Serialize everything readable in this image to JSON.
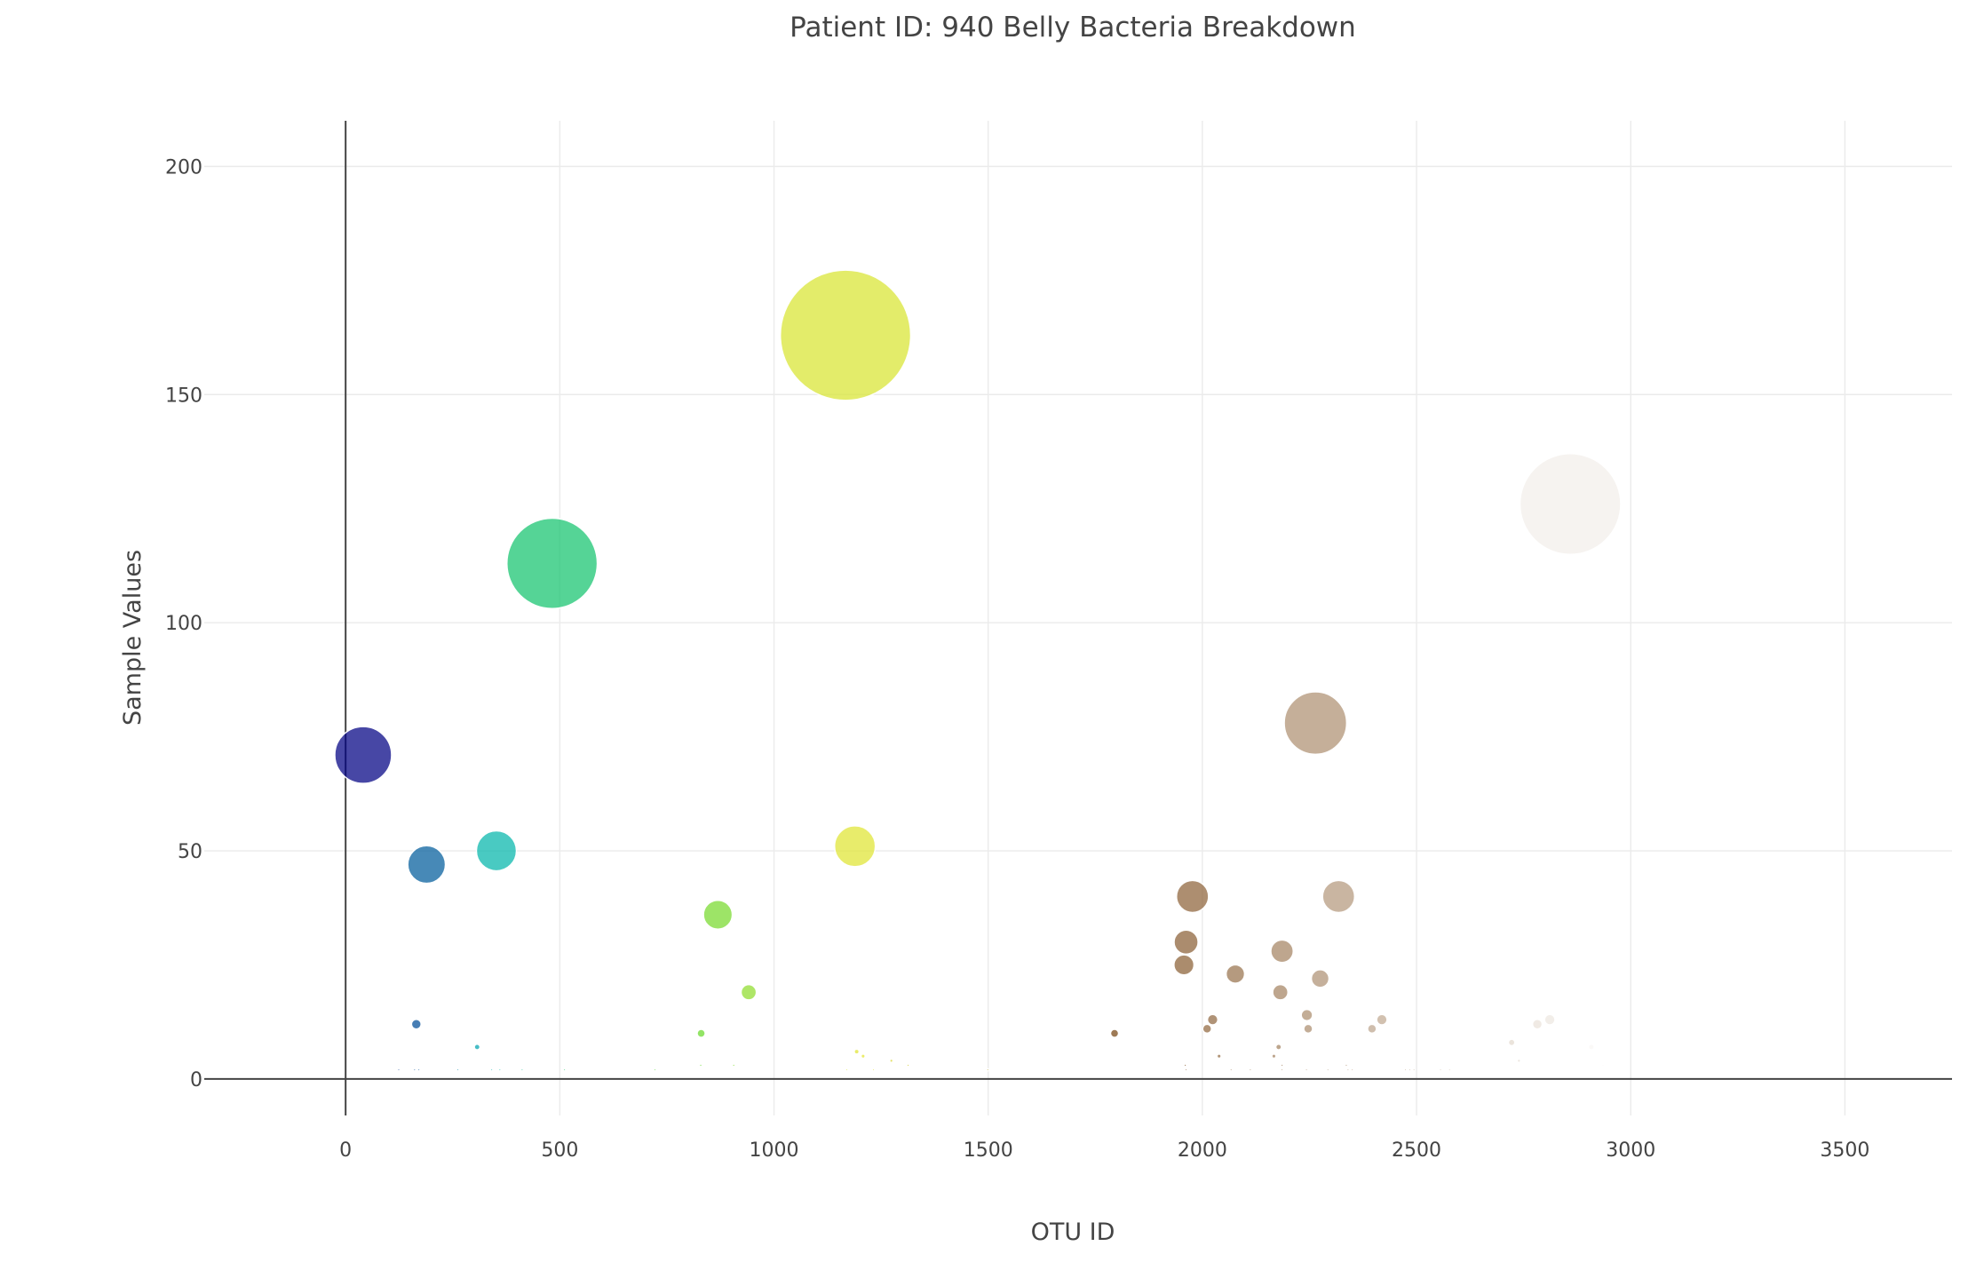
{
  "chart_data": {
    "type": "scatter",
    "title": "Patient ID: 940 Belly Bacteria Breakdown",
    "xlabel": "OTU ID",
    "ylabel": "Sample Values",
    "xlim": [
      -330,
      3750
    ],
    "ylim": [
      -8,
      210
    ],
    "xticks": [
      0,
      500,
      1000,
      1500,
      2000,
      2500,
      3000,
      3500
    ],
    "yticks": [
      0,
      50,
      100,
      150,
      200
    ],
    "grid": true,
    "legend": "none",
    "marker_size_encodes": "sample value",
    "colorscale": "Earth",
    "color_encodes": "OTU ID",
    "points": [
      {
        "x": 1167,
        "y": 163
      },
      {
        "x": 2859,
        "y": 126
      },
      {
        "x": 482,
        "y": 113
      },
      {
        "x": 2264,
        "y": 78
      },
      {
        "x": 41,
        "y": 71
      },
      {
        "x": 1189,
        "y": 51
      },
      {
        "x": 352,
        "y": 50
      },
      {
        "x": 189,
        "y": 47
      },
      {
        "x": 1977,
        "y": 40
      },
      {
        "x": 2318,
        "y": 40
      },
      {
        "x": 869,
        "y": 36
      },
      {
        "x": 1962,
        "y": 30
      },
      {
        "x": 2186,
        "y": 28
      },
      {
        "x": 1957,
        "y": 25
      },
      {
        "x": 2077,
        "y": 23
      },
      {
        "x": 2275,
        "y": 22
      },
      {
        "x": 2182,
        "y": 19
      },
      {
        "x": 941,
        "y": 19
      },
      {
        "x": 2244,
        "y": 14
      },
      {
        "x": 2024,
        "y": 13
      },
      {
        "x": 2419,
        "y": 13
      },
      {
        "x": 2811,
        "y": 13
      },
      {
        "x": 165,
        "y": 12
      },
      {
        "x": 2782,
        "y": 12
      },
      {
        "x": 2011,
        "y": 11
      },
      {
        "x": 2247,
        "y": 11
      },
      {
        "x": 2396,
        "y": 11
      },
      {
        "x": 830,
        "y": 10
      },
      {
        "x": 1795,
        "y": 10
      },
      {
        "x": 2964,
        "y": 10
      },
      {
        "x": 2722,
        "y": 8
      },
      {
        "x": 307,
        "y": 7
      },
      {
        "x": 2178,
        "y": 7
      },
      {
        "x": 2908,
        "y": 7
      },
      {
        "x": 1193,
        "y": 6
      },
      {
        "x": 1208,
        "y": 5
      },
      {
        "x": 2039,
        "y": 5
      },
      {
        "x": 2167,
        "y": 5
      },
      {
        "x": 1274,
        "y": 4
      },
      {
        "x": 2739,
        "y": 4
      },
      {
        "x": 829,
        "y": 3
      },
      {
        "x": 906,
        "y": 3
      },
      {
        "x": 1313,
        "y": 3
      },
      {
        "x": 1960,
        "y": 3
      },
      {
        "x": 2186,
        "y": 3
      },
      {
        "x": 2336,
        "y": 3
      },
      {
        "x": 2935,
        "y": 3
      },
      {
        "x": 124,
        "y": 2
      },
      {
        "x": 161,
        "y": 2
      },
      {
        "x": 171,
        "y": 2
      },
      {
        "x": 262,
        "y": 2
      },
      {
        "x": 341,
        "y": 2
      },
      {
        "x": 360,
        "y": 2
      },
      {
        "x": 412,
        "y": 2
      },
      {
        "x": 511,
        "y": 2
      },
      {
        "x": 722,
        "y": 2
      },
      {
        "x": 1170,
        "y": 2
      },
      {
        "x": 1232,
        "y": 2
      },
      {
        "x": 1499,
        "y": 2
      },
      {
        "x": 1962,
        "y": 2
      },
      {
        "x": 2067,
        "y": 2
      },
      {
        "x": 2112,
        "y": 2
      },
      {
        "x": 2186,
        "y": 2
      },
      {
        "x": 2243,
        "y": 2
      },
      {
        "x": 2293,
        "y": 2
      },
      {
        "x": 2340,
        "y": 2
      },
      {
        "x": 2350,
        "y": 2
      },
      {
        "x": 2474,
        "y": 2
      },
      {
        "x": 2484,
        "y": 2
      },
      {
        "x": 2494,
        "y": 2
      },
      {
        "x": 2556,
        "y": 2
      },
      {
        "x": 2577,
        "y": 2
      }
    ]
  }
}
